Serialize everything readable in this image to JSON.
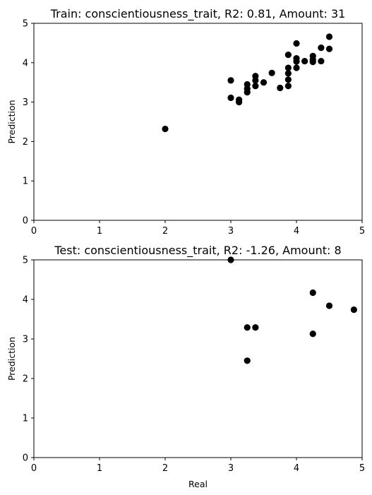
{
  "chart_data": [
    {
      "type": "scatter",
      "title": "Train: conscientiousness_trait, R2: 0.81, Amount: 31",
      "xlabel": "",
      "ylabel": "Prediction",
      "xlim": [
        0,
        5
      ],
      "ylim": [
        0,
        5
      ],
      "xticks": [
        "0",
        "1",
        "2",
        "3",
        "4",
        "5"
      ],
      "yticks": [
        "0",
        "1",
        "2",
        "3",
        "4",
        "5"
      ],
      "grid": false,
      "marker_color": "#000000",
      "points": [
        {
          "x": 2.0,
          "y": 2.32
        },
        {
          "x": 3.0,
          "y": 3.55
        },
        {
          "x": 3.0,
          "y": 3.11
        },
        {
          "x": 3.125,
          "y": 3.06
        },
        {
          "x": 3.125,
          "y": 3.0
        },
        {
          "x": 3.25,
          "y": 3.45
        },
        {
          "x": 3.25,
          "y": 3.34
        },
        {
          "x": 3.25,
          "y": 3.25
        },
        {
          "x": 3.375,
          "y": 3.66
        },
        {
          "x": 3.375,
          "y": 3.55
        },
        {
          "x": 3.375,
          "y": 3.41
        },
        {
          "x": 3.5,
          "y": 3.5
        },
        {
          "x": 3.625,
          "y": 3.74
        },
        {
          "x": 3.75,
          "y": 3.36
        },
        {
          "x": 3.875,
          "y": 4.2
        },
        {
          "x": 3.875,
          "y": 3.87
        },
        {
          "x": 3.875,
          "y": 3.73
        },
        {
          "x": 3.875,
          "y": 3.57
        },
        {
          "x": 3.875,
          "y": 3.41
        },
        {
          "x": 4.0,
          "y": 4.49
        },
        {
          "x": 4.0,
          "y": 4.11
        },
        {
          "x": 4.0,
          "y": 4.03
        },
        {
          "x": 4.0,
          "y": 3.87
        },
        {
          "x": 4.125,
          "y": 4.04
        },
        {
          "x": 4.25,
          "y": 4.17
        },
        {
          "x": 4.25,
          "y": 4.08
        },
        {
          "x": 4.25,
          "y": 4.02
        },
        {
          "x": 4.375,
          "y": 4.38
        },
        {
          "x": 4.375,
          "y": 4.04
        },
        {
          "x": 4.5,
          "y": 4.66
        },
        {
          "x": 4.5,
          "y": 4.35
        }
      ]
    },
    {
      "type": "scatter",
      "title": "Test: conscientiousness_trait, R2: -1.26, Amount: 8",
      "xlabel": "Real",
      "ylabel": "Prediction",
      "xlim": [
        0,
        5
      ],
      "ylim": [
        0,
        5
      ],
      "xticks": [
        "0",
        "1",
        "2",
        "3",
        "4",
        "5"
      ],
      "yticks": [
        "0",
        "1",
        "2",
        "3",
        "4",
        "5"
      ],
      "grid": false,
      "marker_color": "#000000",
      "points": [
        {
          "x": 3.0,
          "y": 5.0
        },
        {
          "x": 3.25,
          "y": 3.29
        },
        {
          "x": 3.25,
          "y": 2.45
        },
        {
          "x": 3.375,
          "y": 3.29
        },
        {
          "x": 4.25,
          "y": 4.17
        },
        {
          "x": 4.25,
          "y": 3.13
        },
        {
          "x": 4.5,
          "y": 3.84
        },
        {
          "x": 4.875,
          "y": 3.74
        }
      ]
    }
  ]
}
